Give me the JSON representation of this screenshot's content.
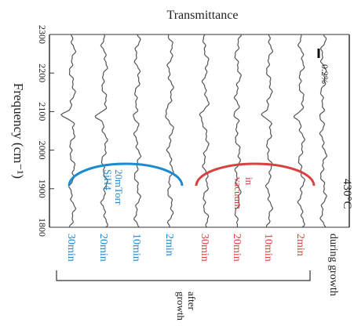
{
  "chart_data": {
    "type": "line",
    "title": "Transmittance",
    "ylabel": "Frequency (cm⁻¹)",
    "yticks": [
      "2300",
      "2200",
      "2100",
      "2000",
      "1900",
      "1800"
    ],
    "ylim": [
      1800,
      2300
    ],
    "scale_bar_label": "0.2%",
    "temperature_label": "430°C",
    "group_labels": {
      "silane": "20mTorr SiH4",
      "vacuum": "in vacuum",
      "after_growth": "after growth"
    },
    "colors": {
      "silane": "#1a8bd0",
      "vacuum": "#d94040",
      "trace": "#555555",
      "axis": "#333333",
      "text": "#222222"
    },
    "series": [
      {
        "name": "30min",
        "group": "silane",
        "dip_center_cm1": 2090,
        "dip_depth_pct": 0.17
      },
      {
        "name": "20min",
        "group": "silane",
        "dip_center_cm1": 2090,
        "dip_depth_pct": 0.15
      },
      {
        "name": "10min",
        "group": "silane",
        "dip_center_cm1": 2090,
        "dip_depth_pct": 0.13
      },
      {
        "name": "2min",
        "group": "silane",
        "dip_center_cm1": 2090,
        "dip_depth_pct": 0.1
      },
      {
        "name": "30min",
        "group": "vacuum",
        "dip_center_cm1": 2090,
        "dip_depth_pct": 0.12
      },
      {
        "name": "20min",
        "group": "vacuum",
        "dip_center_cm1": 2090,
        "dip_depth_pct": 0.12
      },
      {
        "name": "10min",
        "group": "vacuum",
        "dip_center_cm1": 2090,
        "dip_depth_pct": 0.11
      },
      {
        "name": "2min",
        "group": "vacuum",
        "dip_center_cm1": 2090,
        "dip_depth_pct": 0.1
      },
      {
        "name": "during growth",
        "group": "growth",
        "dip_center_cm1": 2090,
        "dip_depth_pct": 0.12
      }
    ]
  }
}
